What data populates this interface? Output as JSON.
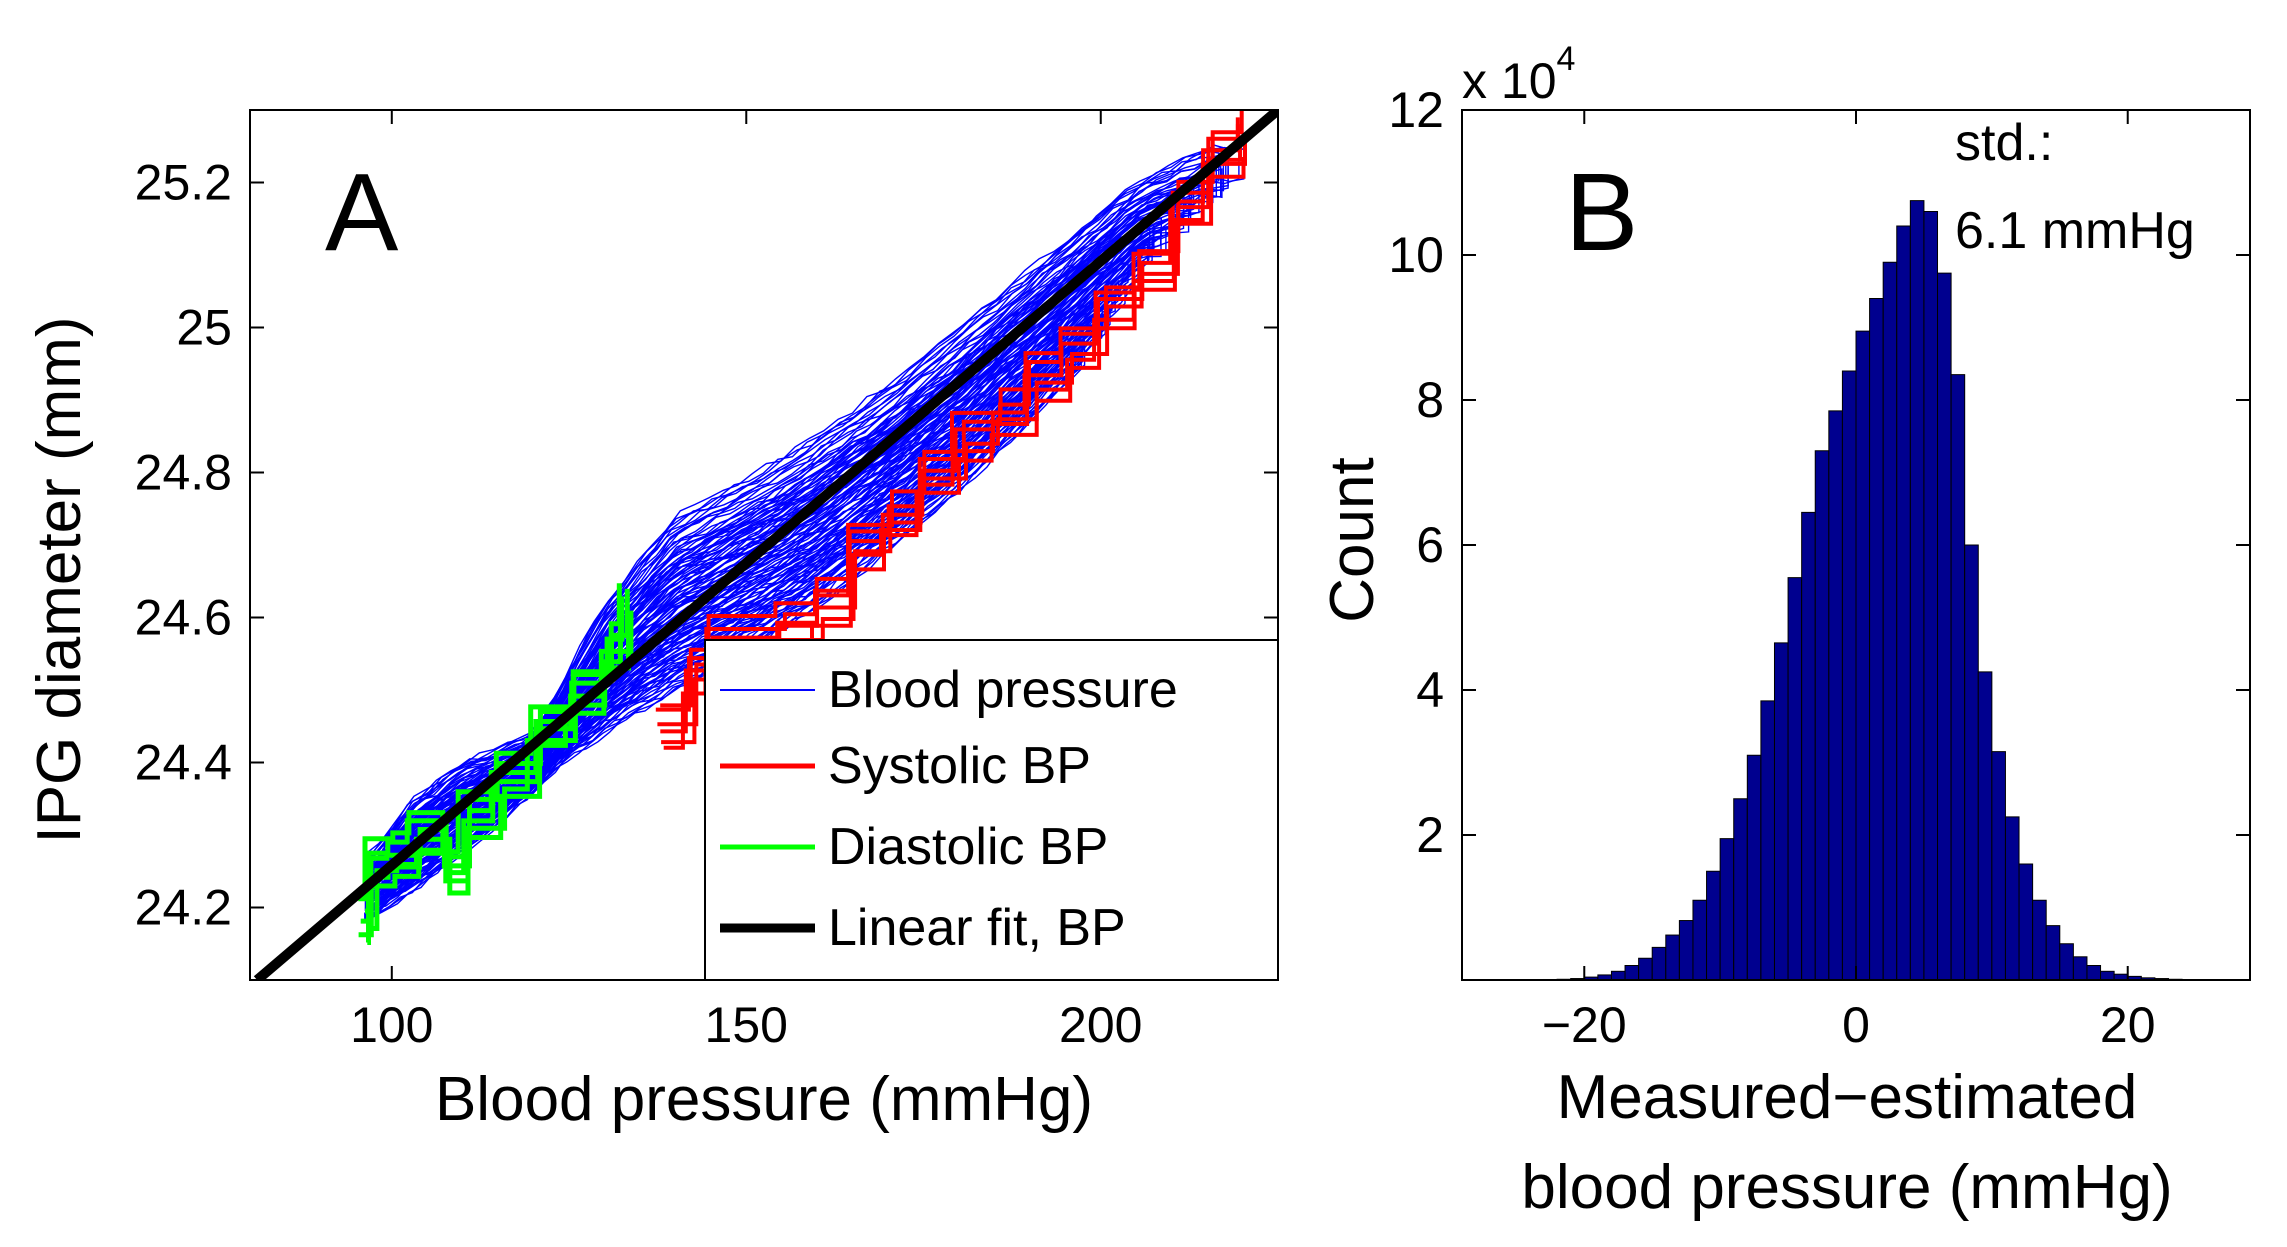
{
  "chart_data": [
    {
      "type": "line",
      "panel_label": "A",
      "xlabel": "Blood pressure (mmHg)",
      "ylabel": "IPG diameter (mm)",
      "xlim": [
        80,
        225
      ],
      "ylim": [
        24.1,
        25.3
      ],
      "xticks": [
        {
          "value": 100,
          "label": "100"
        },
        {
          "value": 150,
          "label": "150"
        },
        {
          "value": 200,
          "label": "200"
        }
      ],
      "yticks": [
        {
          "value": 24.2,
          "label": "24.2"
        },
        {
          "value": 24.4,
          "label": "24.4"
        },
        {
          "value": 24.6,
          "label": "24.6"
        },
        {
          "value": 24.8,
          "label": "24.8"
        },
        {
          "value": 25.0,
          "label": "25"
        },
        {
          "value": 25.2,
          "label": "25.2"
        }
      ],
      "legend_position": "bottom-right",
      "series": [
        {
          "name": "Blood pressure",
          "color": "#0000ff",
          "kind": "loops",
          "lower_edge": [
            [
              97,
              24.18
            ],
            [
              105,
              24.23
            ],
            [
              115,
              24.31
            ],
            [
              125,
              24.4
            ],
            [
              135,
              24.46
            ],
            [
              145,
              24.51
            ],
            [
              160,
              24.6
            ],
            [
              180,
              24.76
            ],
            [
              200,
              24.96
            ],
            [
              207,
              25.03
            ]
          ],
          "upper_edge": [
            [
              97,
              24.27
            ],
            [
              103,
              24.35
            ],
            [
              110,
              24.4
            ],
            [
              120,
              24.44
            ],
            [
              130,
              24.62
            ],
            [
              140,
              24.74
            ],
            [
              155,
              24.82
            ],
            [
              170,
              24.92
            ],
            [
              190,
              25.08
            ],
            [
              205,
              25.2
            ],
            [
              215,
              25.25
            ]
          ],
          "count": 60
        },
        {
          "name": "Systolic BP",
          "color": "#ff0000",
          "kind": "steps",
          "points": [
            [
              138,
              24.45
            ],
            [
              142,
              24.53
            ],
            [
              145,
              24.57
            ],
            [
              155,
              24.59
            ],
            [
              160,
              24.62
            ],
            [
              165,
              24.7
            ],
            [
              170,
              24.74
            ],
            [
              175,
              24.8
            ],
            [
              180,
              24.85
            ],
            [
              185,
              24.88
            ],
            [
              190,
              24.93
            ],
            [
              195,
              24.97
            ],
            [
              200,
              25.03
            ],
            [
              205,
              25.08
            ],
            [
              210,
              25.17
            ],
            [
              215,
              25.24
            ],
            [
              220,
              25.27
            ]
          ]
        },
        {
          "name": "Diastolic BP",
          "color": "#00ff00",
          "kind": "steps",
          "points": [
            [
              96,
              24.18
            ],
            [
              97,
              24.26
            ],
            [
              100,
              24.27
            ],
            [
              103,
              24.3
            ],
            [
              108,
              24.25
            ],
            [
              110,
              24.33
            ],
            [
              115,
              24.38
            ],
            [
              120,
              24.45
            ],
            [
              125,
              24.5
            ],
            [
              130,
              24.56
            ],
            [
              133,
              24.62
            ]
          ]
        },
        {
          "name": "Linear fit, BP",
          "color": "#000000",
          "kind": "line",
          "points": [
            [
              81,
              24.1
            ],
            [
              225,
              25.3
            ]
          ]
        }
      ]
    },
    {
      "type": "bar",
      "panel_label": "B",
      "xlabel_line1": "Measured−estimated",
      "xlabel_line2": "blood pressure (mmHg)",
      "ylabel": "Count",
      "multiplier_base": "x 10",
      "multiplier_exp": "4",
      "annotation_line1": "std.:",
      "annotation_line2": "6.1 mmHg",
      "bar_color": "#00008f",
      "xlim": [
        -29,
        29
      ],
      "ylim": [
        0,
        12
      ],
      "bin_start": -28,
      "bin_width": 1,
      "values": [
        0.001,
        0.002,
        0.003,
        0.004,
        0.005,
        0.007,
        0.01,
        0.02,
        0.04,
        0.07,
        0.12,
        0.2,
        0.3,
        0.45,
        0.62,
        0.82,
        1.1,
        1.5,
        1.95,
        2.5,
        3.1,
        3.85,
        4.65,
        5.55,
        6.45,
        7.3,
        7.85,
        8.4,
        8.95,
        9.4,
        9.9,
        10.4,
        10.75,
        10.6,
        9.75,
        8.35,
        6.0,
        4.25,
        3.15,
        2.25,
        1.6,
        1.1,
        0.75,
        0.5,
        0.32,
        0.2,
        0.12,
        0.08,
        0.05,
        0.03,
        0.02,
        0.01,
        0.005,
        0.003,
        0.002,
        0.001
      ],
      "xticks": [
        {
          "value": -20,
          "label": "−20"
        },
        {
          "value": 0,
          "label": "0"
        },
        {
          "value": 20,
          "label": "20"
        }
      ],
      "yticks": [
        {
          "value": 2,
          "label": "2"
        },
        {
          "value": 4,
          "label": "4"
        },
        {
          "value": 6,
          "label": "6"
        },
        {
          "value": 8,
          "label": "8"
        },
        {
          "value": 10,
          "label": "10"
        },
        {
          "value": 12,
          "label": "12"
        }
      ]
    }
  ]
}
